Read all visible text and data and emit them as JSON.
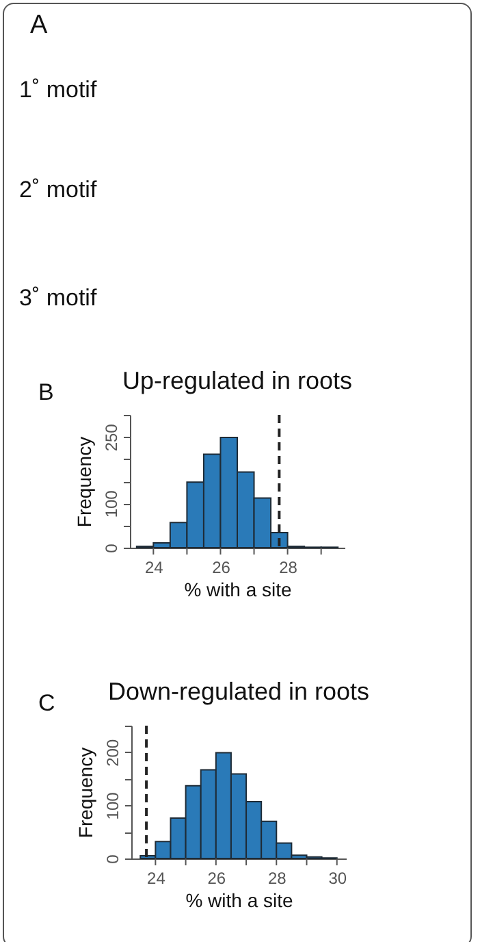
{
  "chart_data": [
    {
      "type": "other",
      "annotations": [
        "A",
        "1˚ motif",
        "2˚ motif",
        "3˚ motif"
      ]
    },
    {
      "type": "histogram",
      "title": "Up-regulated in roots",
      "xlabel": "% with a site",
      "ylabel": "Frequency",
      "annotations": [
        "B"
      ],
      "color": "#2a7ab8",
      "bins": [
        23.5,
        24,
        24.5,
        25,
        25.5,
        26,
        26.5,
        27,
        27.5,
        28,
        28.5,
        29,
        29.5
      ],
      "values": [
        3,
        11,
        57,
        148,
        211,
        249,
        171,
        112,
        34,
        3,
        1,
        1
      ],
      "xlim": [
        23.3,
        29.7
      ],
      "ylim": [
        0,
        300
      ],
      "xticks": [
        24,
        {
          "value": 25,
          "label": null
        },
        26,
        {
          "value": 27,
          "label": null
        },
        28,
        {
          "value": 29,
          "label": null
        }
      ],
      "yticks": [
        0,
        {
          "value": 50,
          "label": null
        },
        100,
        {
          "value": 150,
          "label": null
        },
        {
          "value": 200,
          "label": null
        },
        250,
        {
          "value": 300,
          "label": null
        }
      ],
      "ref_lines": [
        {
          "axis": "x",
          "value": 27.75,
          "line_style": "dashed"
        }
      ]
    },
    {
      "type": "histogram",
      "title": "Down-regulated in roots",
      "xlabel": "% with a site",
      "ylabel": "Frequency",
      "annotations": [
        "C"
      ],
      "color": "#2a7ab8",
      "bins": [
        23.5,
        24,
        24.5,
        25,
        25.5,
        26,
        26.5,
        27,
        27.5,
        28,
        28.5,
        29,
        29.5,
        30
      ],
      "values": [
        5,
        32,
        76,
        137,
        167,
        199,
        159,
        107,
        70,
        29,
        6,
        3,
        1
      ],
      "xlim": [
        23.2,
        30.3
      ],
      "ylim": [
        0,
        250
      ],
      "xticks": [
        24,
        {
          "value": 25,
          "label": null
        },
        26,
        {
          "value": 27,
          "label": null
        },
        28,
        {
          "value": 29,
          "label": null
        },
        30
      ],
      "yticks": [
        0,
        {
          "value": 50,
          "label": null
        },
        100,
        {
          "value": 150,
          "label": null
        },
        200,
        {
          "value": 250,
          "label": null
        }
      ],
      "ref_lines": [
        {
          "axis": "x",
          "value": 23.7,
          "line_style": "dashed"
        }
      ]
    }
  ]
}
